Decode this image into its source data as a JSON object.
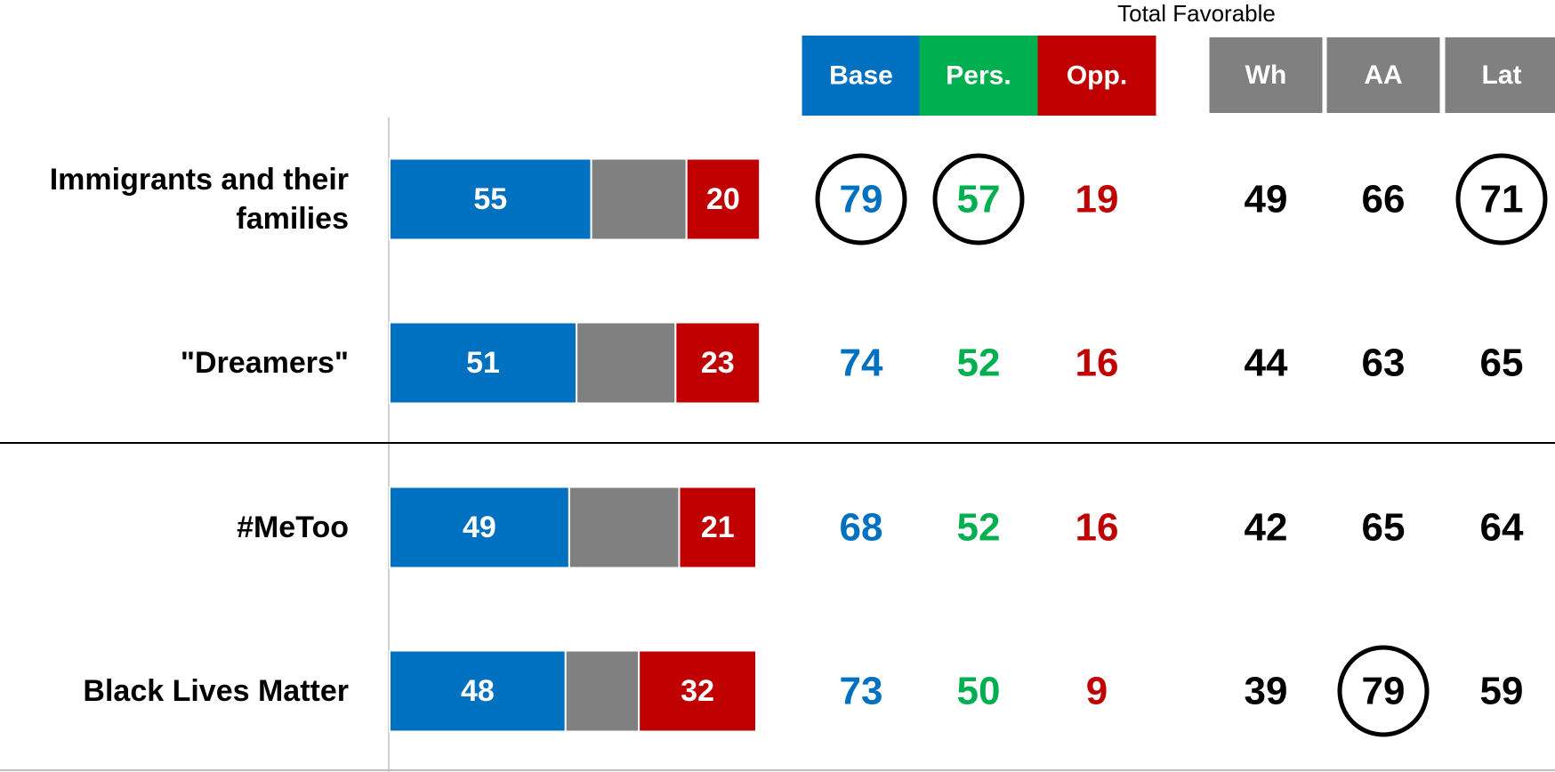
{
  "chart_data": {
    "type": "bar",
    "categories": [
      "Immigrants and their families",
      "\"Dreamers\"",
      "#MeToo",
      "Black Lives Matter"
    ],
    "xlim": [
      0,
      100
    ],
    "series": [
      {
        "color": "#0070c0",
        "show_labels": true,
        "values": [
          55,
          51,
          49,
          48
        ]
      },
      {
        "color": "#808080",
        "show_labels": false,
        "values": [
          26,
          27,
          30,
          20
        ]
      },
      {
        "color": "#c00000",
        "show_labels": true,
        "values": [
          20,
          23,
          21,
          32
        ]
      }
    ],
    "table": {
      "title": "Total Favorable",
      "columns": [
        {
          "label": "Base",
          "header_color": "#0070c0",
          "color": "#0070c0",
          "values": [
            79,
            74,
            68,
            73
          ]
        },
        {
          "label": "Pers.",
          "header_color": "#00b050",
          "color": "#00b050",
          "values": [
            57,
            52,
            52,
            50
          ]
        },
        {
          "label": "Opp.",
          "header_color": "#c00000",
          "color": "#c00000",
          "values": [
            19,
            16,
            16,
            9
          ]
        },
        {
          "label": "Wh",
          "header_color": "#808080",
          "color": "#000000",
          "values": [
            49,
            44,
            42,
            39
          ]
        },
        {
          "label": "AA",
          "header_color": "#808080",
          "color": "#000000",
          "values": [
            66,
            63,
            65,
            79
          ]
        },
        {
          "label": "Lat",
          "header_color": "#808080",
          "color": "#000000",
          "values": [
            71,
            65,
            64,
            59
          ]
        }
      ],
      "circled": [
        [
          0,
          0
        ],
        [
          0,
          1
        ],
        [
          0,
          5
        ],
        [
          3,
          4
        ]
      ]
    }
  }
}
